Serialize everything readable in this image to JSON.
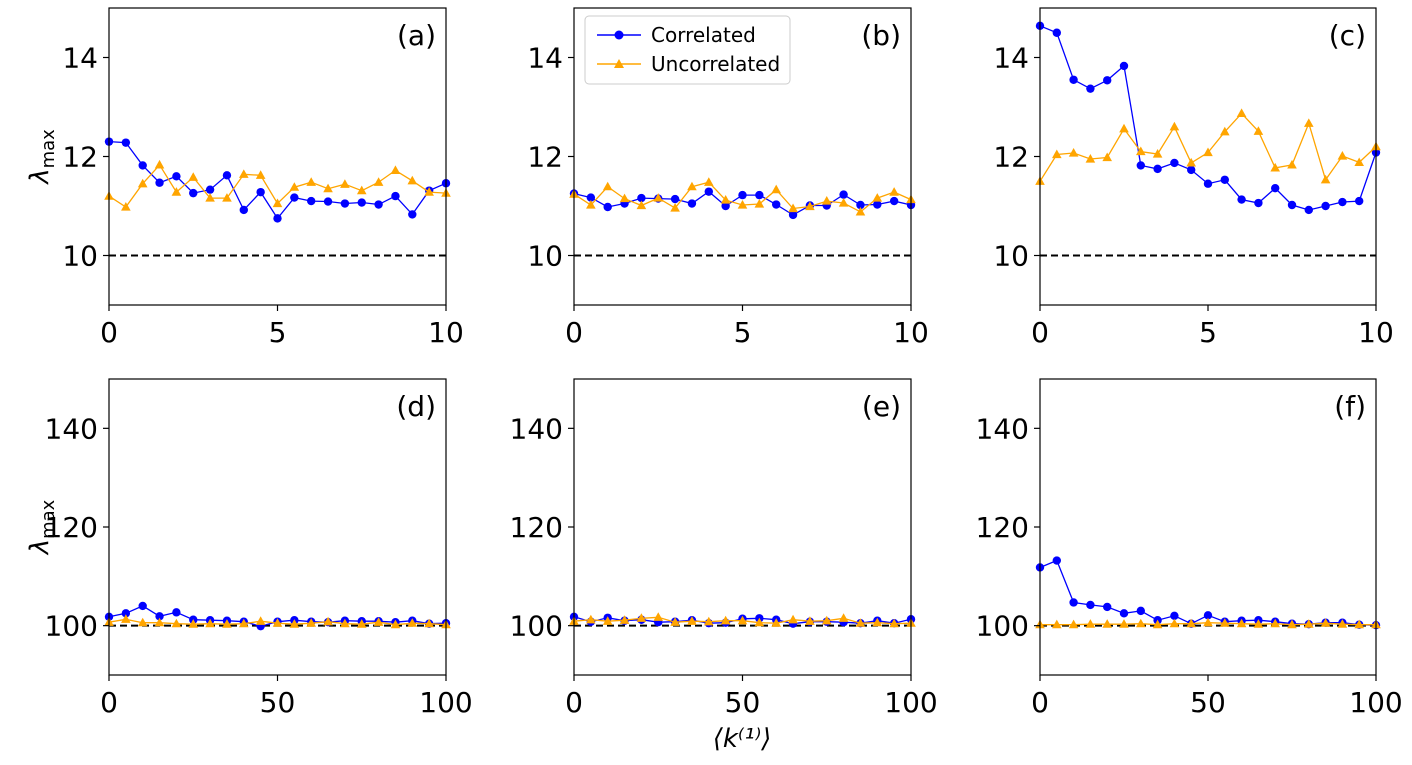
{
  "figure": {
    "xlabel": "⟨k⁽¹⁾⟩",
    "ylabel_symbol": "λ",
    "ylabel_subscript": "max"
  },
  "legend": {
    "location": "upper-left of panel (b)",
    "entries": [
      {
        "label": "Correlated",
        "color": "#0000ff",
        "marker": "circle"
      },
      {
        "label": "Uncorrelated",
        "color": "#ffa500",
        "marker": "triangle"
      }
    ]
  },
  "chart_data": [
    {
      "type": "line",
      "panel": "(a)",
      "xlim": [
        0,
        10
      ],
      "ylim": [
        9,
        15
      ],
      "xticks": [
        "0",
        "5",
        "10"
      ],
      "yticks": [
        "10",
        "12",
        "14"
      ],
      "show_ylabel": true,
      "reference_y": 10,
      "x": [
        0,
        0.5,
        1,
        1.5,
        2,
        2.5,
        3,
        3.5,
        4,
        4.5,
        5,
        5.5,
        6,
        6.5,
        7,
        7.5,
        8,
        8.5,
        9,
        9.5,
        10
      ],
      "series": [
        {
          "name": "Correlated",
          "color": "#0000ff",
          "marker": "circle",
          "values": [
            12.3,
            12.28,
            11.82,
            11.47,
            11.6,
            11.26,
            11.33,
            11.62,
            10.92,
            11.28,
            10.75,
            11.17,
            11.1,
            11.09,
            11.05,
            11.07,
            11.03,
            11.2,
            10.83,
            11.31,
            11.46
          ]
        },
        {
          "name": "Uncorrelated",
          "color": "#ffa500",
          "marker": "triangle",
          "values": [
            11.2,
            10.98,
            11.45,
            11.83,
            11.28,
            11.58,
            11.16,
            11.16,
            11.64,
            11.62,
            11.05,
            11.38,
            11.48,
            11.35,
            11.44,
            11.31,
            11.48,
            11.72,
            11.51,
            11.28,
            11.26
          ]
        }
      ]
    },
    {
      "type": "line",
      "panel": "(b)",
      "xlim": [
        0,
        10
      ],
      "ylim": [
        9,
        15
      ],
      "xticks": [
        "0",
        "5",
        "10"
      ],
      "yticks": [
        "10",
        "12",
        "14"
      ],
      "show_ylabel": false,
      "reference_y": 10,
      "x": [
        0,
        0.5,
        1,
        1.5,
        2,
        2.5,
        3,
        3.5,
        4,
        4.5,
        5,
        5.5,
        6,
        6.5,
        7,
        7.5,
        8,
        8.5,
        9,
        9.5,
        10
      ],
      "series": [
        {
          "name": "Correlated",
          "color": "#0000ff",
          "marker": "circle",
          "values": [
            11.25,
            11.17,
            10.98,
            11.05,
            11.16,
            11.15,
            11.14,
            11.05,
            11.29,
            11.0,
            11.22,
            11.22,
            11.03,
            10.82,
            11.01,
            11.01,
            11.23,
            11.02,
            11.03,
            11.1,
            11.02
          ]
        },
        {
          "name": "Uncorrelated",
          "color": "#ffa500",
          "marker": "triangle",
          "values": [
            11.24,
            11.02,
            11.39,
            11.15,
            11.01,
            11.16,
            10.96,
            11.39,
            11.48,
            11.12,
            11.02,
            11.04,
            11.33,
            10.95,
            10.99,
            11.1,
            11.06,
            10.88,
            11.16,
            11.28,
            11.13
          ]
        }
      ]
    },
    {
      "type": "line",
      "panel": "(c)",
      "xlim": [
        0,
        10
      ],
      "ylim": [
        9,
        15
      ],
      "xticks": [
        "0",
        "5",
        "10"
      ],
      "yticks": [
        "10",
        "12",
        "14"
      ],
      "show_ylabel": false,
      "reference_y": 10,
      "x": [
        0,
        0.5,
        1,
        1.5,
        2,
        2.5,
        3,
        3.5,
        4,
        4.5,
        5,
        5.5,
        6,
        6.5,
        7,
        7.5,
        8,
        8.5,
        9,
        9.5,
        10
      ],
      "series": [
        {
          "name": "Correlated",
          "color": "#0000ff",
          "marker": "circle",
          "values": [
            14.64,
            14.5,
            13.55,
            13.37,
            13.54,
            13.83,
            11.82,
            11.75,
            11.87,
            11.73,
            11.45,
            11.53,
            11.13,
            11.06,
            11.36,
            11.02,
            10.92,
            11.0,
            11.08,
            11.1,
            12.08
          ]
        },
        {
          "name": "Uncorrelated",
          "color": "#ffa500",
          "marker": "triangle",
          "values": [
            11.5,
            12.04,
            12.07,
            11.95,
            11.98,
            12.56,
            12.1,
            12.05,
            12.6,
            11.87,
            12.08,
            12.5,
            12.87,
            12.51,
            11.77,
            11.83,
            12.67,
            11.53,
            12.01,
            11.88,
            12.2
          ]
        }
      ]
    },
    {
      "type": "line",
      "panel": "(d)",
      "xlim": [
        0,
        100
      ],
      "ylim": [
        90,
        150
      ],
      "xticks": [
        "0",
        "50",
        "100"
      ],
      "yticks": [
        "100",
        "120",
        "140"
      ],
      "show_ylabel": true,
      "reference_y": 100,
      "x": [
        0,
        5,
        10,
        15,
        20,
        25,
        30,
        35,
        40,
        45,
        50,
        55,
        60,
        65,
        70,
        75,
        80,
        85,
        90,
        95,
        100
      ],
      "series": [
        {
          "name": "Correlated",
          "color": "#0000ff",
          "marker": "circle",
          "values": [
            101.8,
            102.5,
            104.0,
            101.9,
            102.7,
            101.2,
            101.1,
            101.0,
            100.8,
            99.9,
            100.8,
            101.1,
            100.8,
            100.7,
            101.0,
            100.9,
            100.9,
            100.7,
            101.0,
            100.4,
            100.5
          ]
        },
        {
          "name": "Uncorrelated",
          "color": "#ffa500",
          "marker": "triangle",
          "values": [
            100.7,
            101.3,
            100.6,
            100.6,
            100.4,
            100.3,
            100.4,
            100.3,
            100.4,
            100.9,
            100.5,
            100.3,
            100.5,
            100.8,
            100.4,
            100.3,
            100.7,
            100.2,
            100.5,
            100.4,
            100.2
          ]
        }
      ]
    },
    {
      "type": "line",
      "panel": "(e)",
      "xlim": [
        0,
        100
      ],
      "ylim": [
        90,
        150
      ],
      "xticks": [
        "0",
        "50",
        "100"
      ],
      "yticks": [
        "100",
        "120",
        "140"
      ],
      "show_ylabel": false,
      "reference_y": 100,
      "x": [
        0,
        5,
        10,
        15,
        20,
        25,
        30,
        35,
        40,
        45,
        50,
        55,
        60,
        65,
        70,
        75,
        80,
        85,
        90,
        95,
        100
      ],
      "series": [
        {
          "name": "Correlated",
          "color": "#0000ff",
          "marker": "circle",
          "values": [
            101.8,
            100.8,
            101.6,
            101.0,
            101.2,
            100.7,
            100.8,
            101.1,
            100.5,
            100.6,
            101.4,
            101.5,
            101.2,
            100.4,
            100.8,
            100.8,
            100.7,
            100.5,
            101.0,
            100.5,
            101.3
          ]
        },
        {
          "name": "Uncorrelated",
          "color": "#ffa500",
          "marker": "triangle",
          "values": [
            100.9,
            101.2,
            100.9,
            101.1,
            101.5,
            101.7,
            100.7,
            100.9,
            100.8,
            101.0,
            101.0,
            100.6,
            100.5,
            101.2,
            100.9,
            101.0,
            101.5,
            100.5,
            100.6,
            100.4,
            100.5
          ]
        }
      ]
    },
    {
      "type": "line",
      "panel": "(f)",
      "xlim": [
        0,
        100
      ],
      "ylim": [
        90,
        150
      ],
      "xticks": [
        "0",
        "50",
        "100"
      ],
      "yticks": [
        "100",
        "120",
        "140"
      ],
      "show_ylabel": false,
      "reference_y": 100,
      "x": [
        0,
        5,
        10,
        15,
        20,
        25,
        30,
        35,
        40,
        45,
        50,
        55,
        60,
        65,
        70,
        75,
        80,
        85,
        90,
        95,
        100
      ],
      "series": [
        {
          "name": "Correlated",
          "color": "#0000ff",
          "marker": "circle",
          "values": [
            111.8,
            113.2,
            104.7,
            104.2,
            103.8,
            102.5,
            103.0,
            101.1,
            102.0,
            100.4,
            102.1,
            100.8,
            101.0,
            101.1,
            100.8,
            100.4,
            100.3,
            100.6,
            100.6,
            100.2,
            100.1
          ]
        },
        {
          "name": "Uncorrelated",
          "color": "#ffa500",
          "marker": "triangle",
          "values": [
            100.2,
            100.2,
            100.2,
            100.3,
            100.3,
            100.3,
            100.4,
            100.2,
            100.4,
            100.4,
            100.6,
            100.5,
            100.4,
            100.3,
            100.4,
            100.2,
            100.3,
            100.5,
            100.3,
            100.2,
            100.2
          ]
        }
      ]
    }
  ]
}
